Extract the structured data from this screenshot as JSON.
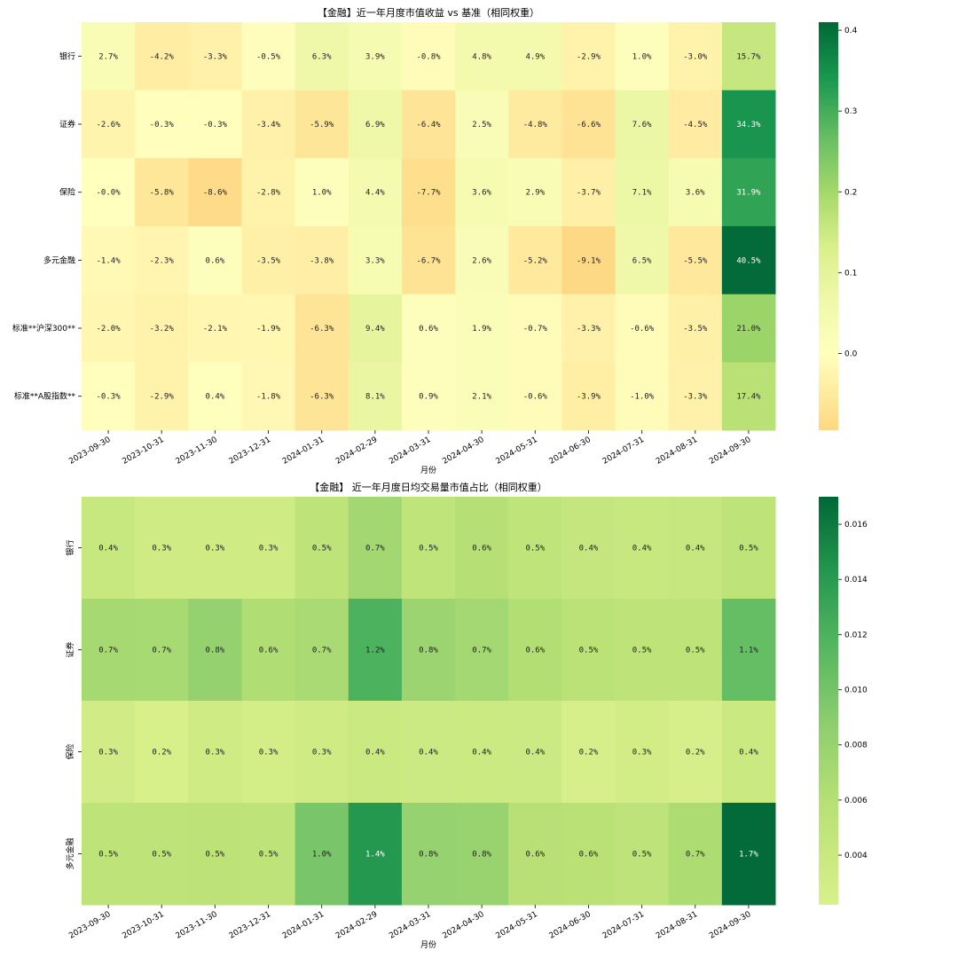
{
  "chart_data": [
    {
      "type": "heatmap",
      "title": "【金融】近一年月度市值收益 vs 基准（相同权重）",
      "xlabel": "月份",
      "ylabel": "",
      "x": [
        "2023-09-30",
        "2023-10-31",
        "2023-11-30",
        "2023-12-31",
        "2024-01-31",
        "2024-02-29",
        "2024-03-31",
        "2024-04-30",
        "2024-05-31",
        "2024-06-30",
        "2024-07-31",
        "2024-08-31",
        "2024-09-30"
      ],
      "y": [
        "银行",
        "证券",
        "保险",
        "多元金融",
        "标准**沪深300**",
        "标准**A股指数**"
      ],
      "values": [
        [
          0.027,
          -0.042,
          -0.033,
          -0.005,
          0.063,
          0.039,
          -0.008,
          0.048,
          0.049,
          -0.029,
          0.01,
          -0.03,
          0.157
        ],
        [
          -0.026,
          -0.003,
          -0.003,
          -0.034,
          -0.059,
          0.069,
          -0.064,
          0.025,
          -0.048,
          -0.066,
          0.076,
          -0.045,
          0.343
        ],
        [
          -0.0,
          -0.058,
          -0.086,
          -0.028,
          0.01,
          0.044,
          -0.077,
          0.036,
          0.029,
          -0.037,
          0.071,
          0.036,
          0.319
        ],
        [
          -0.014,
          -0.023,
          0.006,
          -0.035,
          -0.038,
          0.033,
          -0.067,
          0.026,
          -0.052,
          -0.091,
          0.065,
          -0.055,
          0.405
        ],
        [
          -0.02,
          -0.032,
          -0.021,
          -0.019,
          -0.063,
          0.094,
          0.006,
          0.019,
          -0.007,
          -0.033,
          -0.006,
          -0.035,
          0.21
        ],
        [
          -0.003,
          -0.029,
          0.004,
          -0.018,
          -0.063,
          0.081,
          0.009,
          0.021,
          -0.006,
          -0.039,
          -0.01,
          -0.033,
          0.174
        ]
      ],
      "cell_labels": [
        [
          "2.7%",
          "-4.2%",
          "-3.3%",
          "-0.5%",
          "6.3%",
          "3.9%",
          "-0.8%",
          "4.8%",
          "4.9%",
          "-2.9%",
          "1.0%",
          "-3.0%",
          "15.7%"
        ],
        [
          "-2.6%",
          "-0.3%",
          "-0.3%",
          "-3.4%",
          "-5.9%",
          "6.9%",
          "-6.4%",
          "2.5%",
          "-4.8%",
          "-6.6%",
          "7.6%",
          "-4.5%",
          "34.3%"
        ],
        [
          "-0.0%",
          "-5.8%",
          "-8.6%",
          "-2.8%",
          "1.0%",
          "4.4%",
          "-7.7%",
          "3.6%",
          "2.9%",
          "-3.7%",
          "7.1%",
          "3.6%",
          "31.9%"
        ],
        [
          "-1.4%",
          "-2.3%",
          "0.6%",
          "-3.5%",
          "-3.8%",
          "3.3%",
          "-6.7%",
          "2.6%",
          "-5.2%",
          "-9.1%",
          "6.5%",
          "-5.5%",
          "40.5%"
        ],
        [
          "-2.0%",
          "-3.2%",
          "-2.1%",
          "-1.9%",
          "-6.3%",
          "9.4%",
          "0.6%",
          "1.9%",
          "-0.7%",
          "-3.3%",
          "-0.6%",
          "-3.5%",
          "21.0%"
        ],
        [
          "-0.3%",
          "-2.9%",
          "0.4%",
          "-1.8%",
          "-6.3%",
          "8.1%",
          "0.9%",
          "2.1%",
          "-0.6%",
          "-3.9%",
          "-1.0%",
          "-3.3%",
          "17.4%"
        ]
      ],
      "colorbar": {
        "min": -0.095,
        "max": 0.41,
        "ticks": [
          0.0,
          0.1,
          0.2,
          0.3,
          0.4
        ],
        "tick_labels": [
          "0.0",
          "0.1",
          "0.2",
          "0.3",
          "0.4"
        ]
      },
      "colormap": "RdYlGn (centered at 0)",
      "ytick_rotation": "horizontal"
    },
    {
      "type": "heatmap",
      "title": "【金融】 近一年月度日均交易量市值占比（相同权重）",
      "xlabel": "月份",
      "ylabel": "",
      "x": [
        "2023-09-30",
        "2023-10-31",
        "2023-11-30",
        "2023-12-31",
        "2024-01-31",
        "2024-02-29",
        "2024-03-31",
        "2024-04-30",
        "2024-05-31",
        "2024-06-30",
        "2024-07-31",
        "2024-08-31",
        "2024-09-30"
      ],
      "y": [
        "银行",
        "证券",
        "保险",
        "多元金融"
      ],
      "values": [
        [
          0.0042,
          0.0034,
          0.0033,
          0.0033,
          0.0052,
          0.0073,
          0.005,
          0.006,
          0.005,
          0.0044,
          0.0042,
          0.0043,
          0.0052
        ],
        [
          0.007,
          0.0069,
          0.0082,
          0.0064,
          0.0068,
          0.012,
          0.0078,
          0.0072,
          0.0062,
          0.0055,
          0.0053,
          0.0053,
          0.0108
        ],
        [
          0.0031,
          0.0023,
          0.0034,
          0.0028,
          0.0033,
          0.0038,
          0.0036,
          0.0037,
          0.0036,
          0.0024,
          0.003,
          0.0024,
          0.0038
        ],
        [
          0.0053,
          0.0052,
          0.0054,
          0.0052,
          0.0098,
          0.0142,
          0.0081,
          0.008,
          0.0058,
          0.0057,
          0.0051,
          0.0066,
          0.0168
        ]
      ],
      "cell_labels": [
        [
          "0.4%",
          "0.3%",
          "0.3%",
          "0.3%",
          "0.5%",
          "0.7%",
          "0.5%",
          "0.6%",
          "0.5%",
          "0.4%",
          "0.4%",
          "0.4%",
          "0.5%"
        ],
        [
          "0.7%",
          "0.7%",
          "0.8%",
          "0.6%",
          "0.7%",
          "1.2%",
          "0.8%",
          "0.7%",
          "0.6%",
          "0.5%",
          "0.5%",
          "0.5%",
          "1.1%"
        ],
        [
          "0.3%",
          "0.2%",
          "0.3%",
          "0.3%",
          "0.3%",
          "0.4%",
          "0.4%",
          "0.4%",
          "0.4%",
          "0.2%",
          "0.3%",
          "0.2%",
          "0.4%"
        ],
        [
          "0.5%",
          "0.5%",
          "0.5%",
          "0.5%",
          "1.0%",
          "1.4%",
          "0.8%",
          "0.8%",
          "0.6%",
          "0.6%",
          "0.5%",
          "0.7%",
          "1.7%"
        ]
      ],
      "colorbar": {
        "min": 0.0022,
        "max": 0.017,
        "ticks": [
          0.004,
          0.006,
          0.008,
          0.01,
          0.012,
          0.014,
          0.016
        ],
        "tick_labels": [
          "0.004",
          "0.006",
          "0.008",
          "0.010",
          "0.012",
          "0.014",
          "0.016"
        ]
      },
      "colormap": "YlGn (upper range)",
      "ytick_rotation": "vertical"
    }
  ]
}
